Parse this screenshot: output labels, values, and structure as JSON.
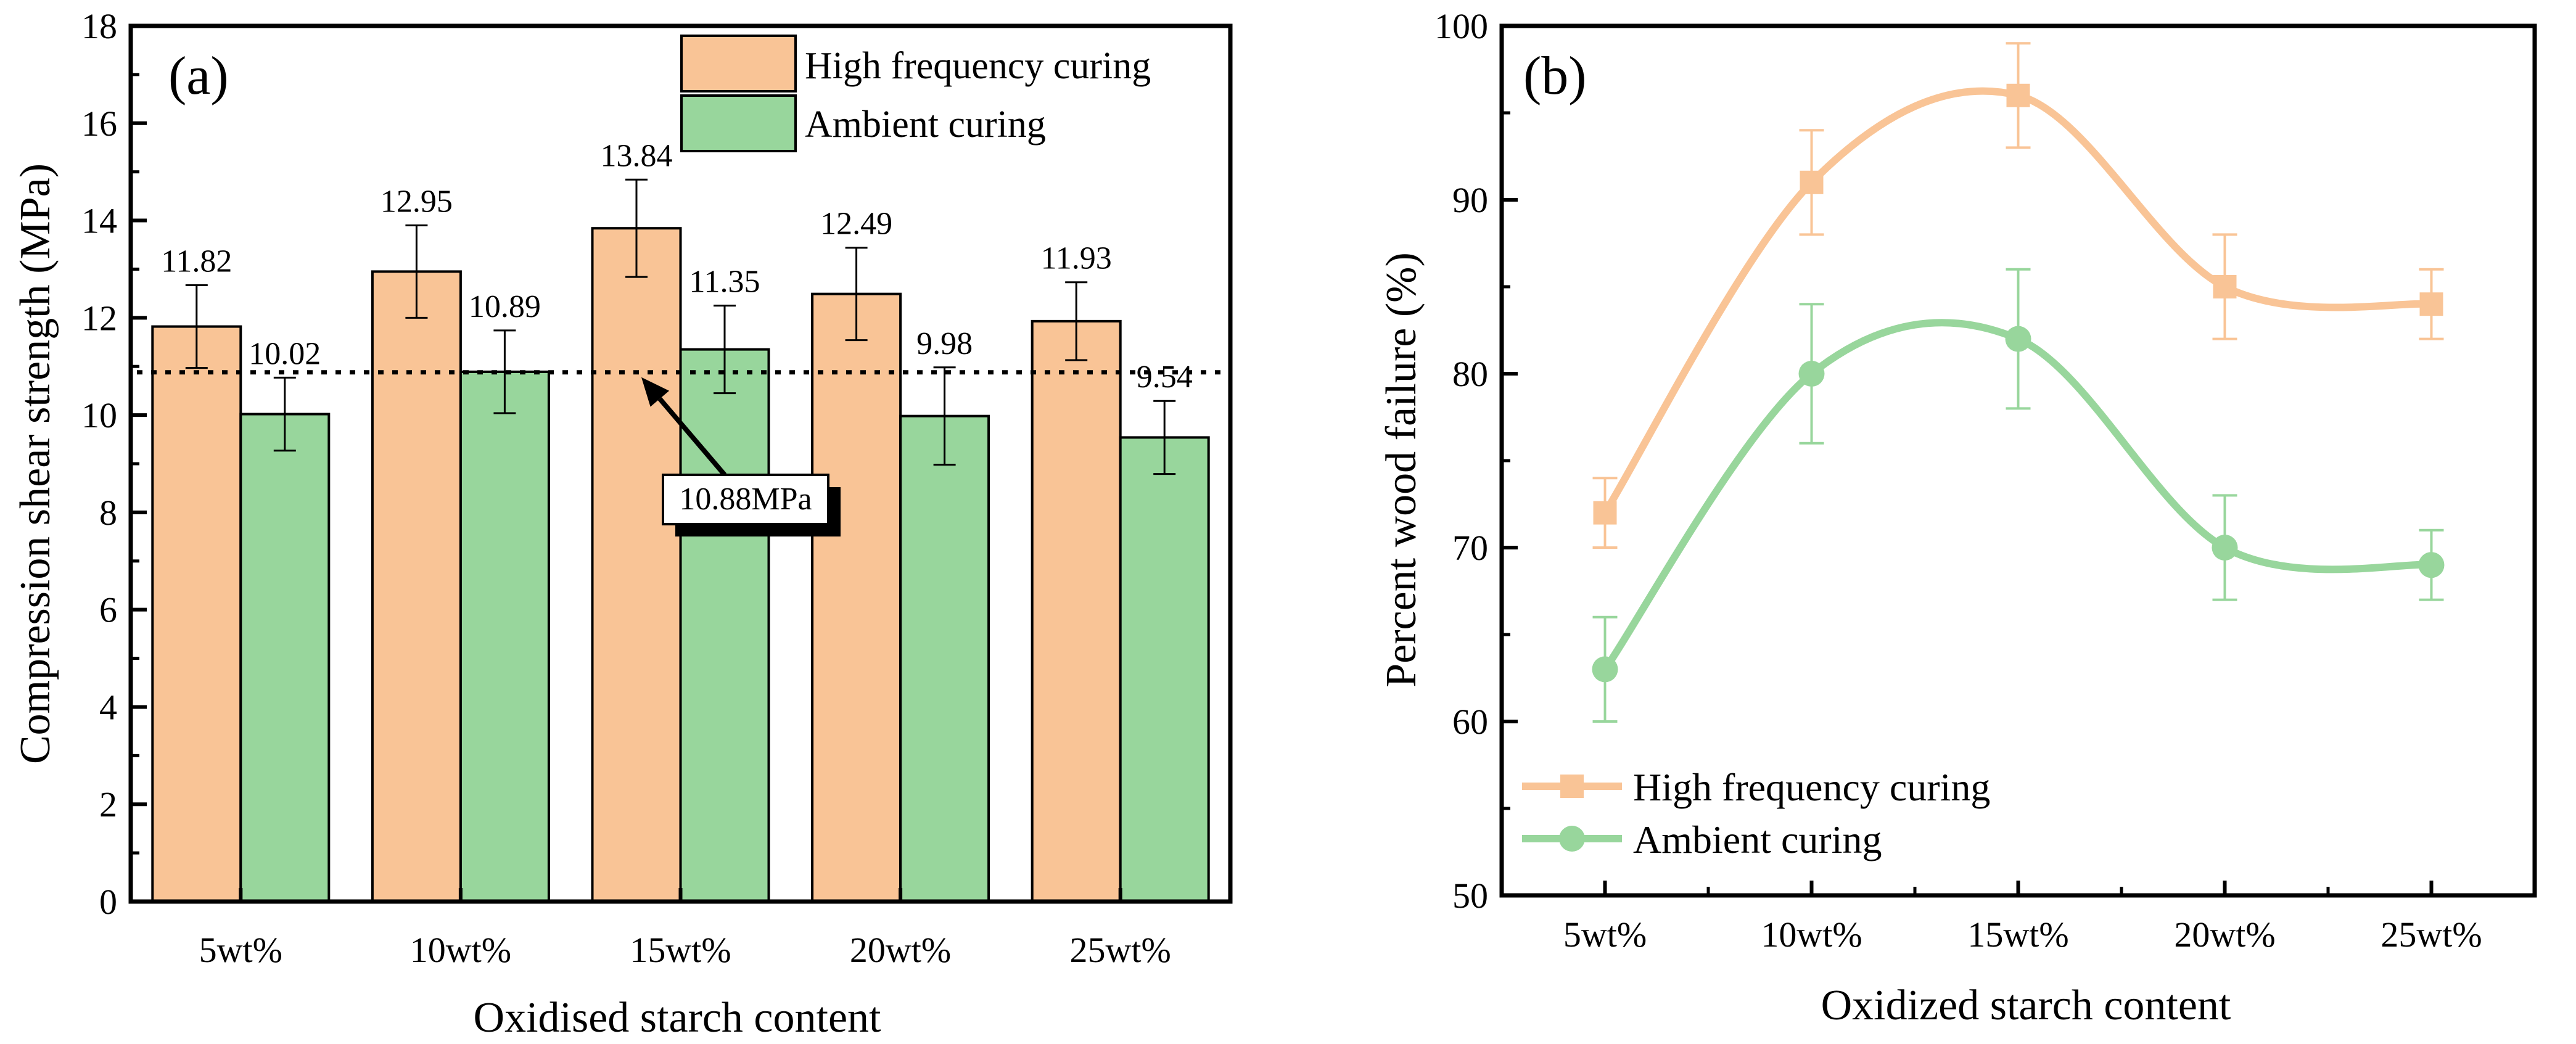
{
  "chart_data": [
    {
      "type": "bar",
      "panel_label": "(a)",
      "xlabel": "Oxidised starch content",
      "ylabel": "Compression shear strength (MPa)",
      "categories": [
        "5wt%",
        "10wt%",
        "15wt%",
        "20wt%",
        "25wt%"
      ],
      "ylim": [
        0,
        18
      ],
      "yticks": [
        0,
        2,
        4,
        6,
        8,
        10,
        12,
        14,
        16,
        18
      ],
      "series": [
        {
          "name": "High frequency curing",
          "color": "#F9C496",
          "values": [
            11.82,
            12.95,
            13.84,
            12.49,
            11.93
          ],
          "errors": [
            0.85,
            0.95,
            1.0,
            0.95,
            0.8
          ],
          "labels": [
            "11.82",
            "12.95",
            "13.84",
            "12.49",
            "11.93"
          ]
        },
        {
          "name": "Ambient curing",
          "color": "#98D69C",
          "values": [
            10.02,
            10.89,
            11.35,
            9.98,
            9.54
          ],
          "errors": [
            0.75,
            0.85,
            0.9,
            1.0,
            0.75
          ],
          "labels": [
            "10.02",
            "10.89",
            "11.35",
            "9.98",
            "9.54"
          ]
        }
      ],
      "reference_line": {
        "value": 10.88,
        "label": "10.88MPa",
        "style": "dotted"
      },
      "legend": {
        "position": "top-right"
      },
      "grid": false
    },
    {
      "type": "line",
      "panel_label": "(b)",
      "xlabel": "Oxidized starch content",
      "ylabel": "Percent wood failure (%)",
      "categories": [
        "5wt%",
        "10wt%",
        "15wt%",
        "20wt%",
        "25wt%"
      ],
      "ylim": [
        50,
        100
      ],
      "yticks": [
        50,
        60,
        70,
        80,
        90,
        100
      ],
      "series": [
        {
          "name": "High frequency curing",
          "color": "#F9C496",
          "marker": "square",
          "values": [
            72,
            91,
            96,
            85,
            84
          ],
          "errors": [
            2,
            3,
            3,
            3,
            2
          ]
        },
        {
          "name": "Ambient curing",
          "color": "#98D69C",
          "marker": "circle",
          "values": [
            63,
            80,
            82,
            70,
            69
          ],
          "errors": [
            3,
            4,
            4,
            3,
            2
          ]
        }
      ],
      "smooth": true,
      "legend": {
        "position": "bottom-left"
      },
      "grid": false
    }
  ]
}
